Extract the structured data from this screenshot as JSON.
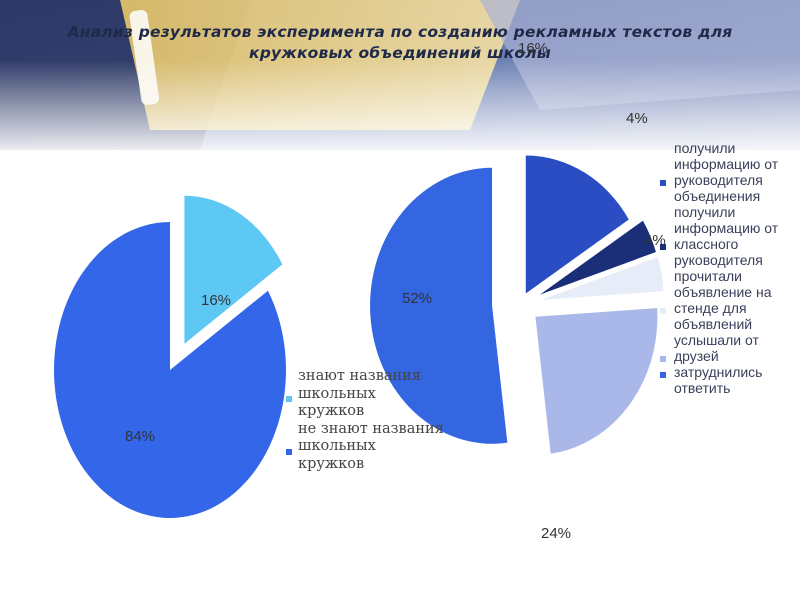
{
  "title": {
    "line1": "Анализ результатов эксперимента  по созданию рекламных текстов для",
    "line2": "кружковых объединений школы"
  },
  "chart_data": [
    {
      "type": "pie",
      "slices": [
        {
          "label": "знают названия школьных кружков",
          "value": 16,
          "value_label": "16%",
          "color": "#5ec8f4",
          "exploded": true
        },
        {
          "label": "не знают названия школьных кружков",
          "value": 84,
          "value_label": "84%",
          "color": "#3366e8",
          "exploded": false
        }
      ],
      "legend": {
        "placement": "right",
        "items": [
          {
            "text": "знают названия школьных кружков",
            "color": "#5ec8f4"
          },
          {
            "text": "не знают названия школьных кружков",
            "color": "#3366e8"
          }
        ]
      }
    },
    {
      "type": "pie",
      "slices": [
        {
          "label": "получили информацию от руководителя объединения",
          "value": 16,
          "value_label": "16%",
          "color": "#2a4dc4"
        },
        {
          "label": "получили информацию от классного руководителя",
          "value": 4,
          "value_label": "4%",
          "color": "#1a2f78"
        },
        {
          "label": "прочитали объявление на стенде для объявлений",
          "value": 4,
          "value_label": "4%",
          "color": "#e6ecf8"
        },
        {
          "label": "услышали от друзей",
          "value": 24,
          "value_label": "24%",
          "color": "#a9b8e8"
        },
        {
          "label": "затруднились ответить",
          "value": 52,
          "value_label": "52%",
          "color": "#3366e0"
        }
      ],
      "legend": {
        "placement": "right",
        "items": [
          {
            "text": "получили информацию от руководителя объединения",
            "color": "#2a4dc4"
          },
          {
            "text": "получили информацию от классного руководителя",
            "color": "#1a2f78"
          },
          {
            "text": "прочитали объявление на стенде для объявлений",
            "color": "#e6ecf8"
          },
          {
            "text": "услышали от друзей",
            "color": "#a9b8e8"
          },
          {
            "text": "затруднились ответить",
            "color": "#3366e0"
          }
        ]
      }
    }
  ]
}
